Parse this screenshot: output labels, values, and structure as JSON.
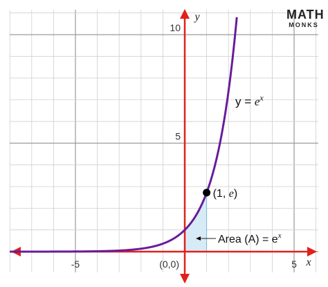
{
  "chart_data": {
    "type": "line",
    "function": "y = e^x",
    "series": [
      {
        "x": [
          -8,
          -6,
          -4,
          -3,
          -2,
          -1.5,
          -1,
          -0.5,
          0,
          0.25,
          0.5,
          0.75,
          1,
          1.25,
          1.5,
          1.75,
          2,
          2.1,
          2.2,
          2.3,
          2.4
        ],
        "y": [
          0.0003,
          0.0025,
          0.018,
          0.05,
          0.135,
          0.223,
          0.368,
          0.607,
          1,
          1.284,
          1.649,
          2.117,
          2.718,
          3.49,
          4.482,
          5.755,
          7.389,
          8.166,
          9.025,
          9.974,
          11.023
        ],
        "color": "#6a1b9a"
      }
    ],
    "xlim": [
      -8,
      6
    ],
    "ylim": [
      -0.8,
      11
    ],
    "xticks": [
      {
        "value": -5,
        "label": "-5"
      },
      {
        "value": 5,
        "label": "5"
      }
    ],
    "yticks": [
      {
        "value": 5,
        "label": "5"
      },
      {
        "value": 10,
        "label": "10"
      }
    ],
    "origin_label": "(0,0)",
    "xlabel": "x",
    "ylabel": "y",
    "grid": true,
    "axis_color": "#e0201b",
    "shaded_region": {
      "from_x": 0,
      "to_x": 1,
      "color": "#d7ebf7",
      "label": "Area (A) = e",
      "label_exponent": "x"
    },
    "annotations": [
      {
        "x": 1,
        "y": 2.718,
        "text": "(1, ",
        "italic": "e",
        "suffix": ")"
      },
      {
        "text": "y = ",
        "italic_base": "e",
        "exponent": "x"
      }
    ]
  },
  "logo": {
    "main": "MATH",
    "sub": "MONKS"
  }
}
